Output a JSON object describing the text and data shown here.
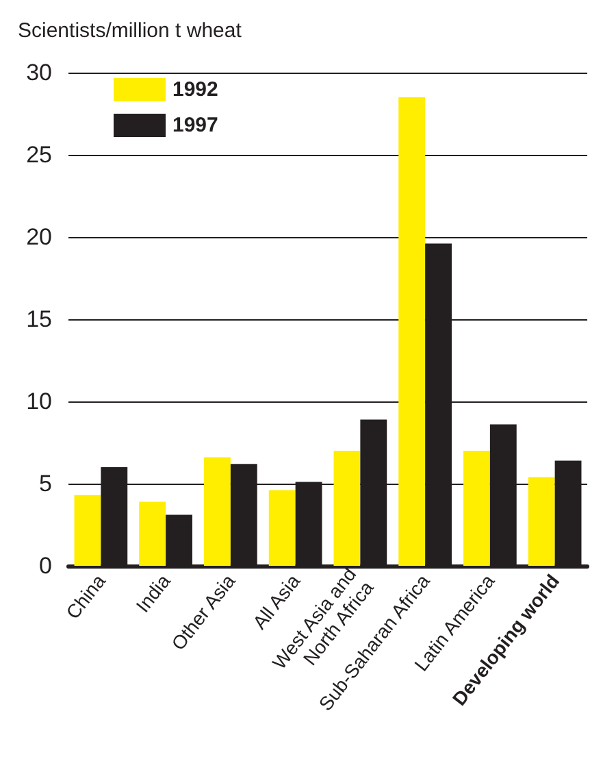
{
  "chart_data": {
    "type": "bar",
    "ylabel": "Scientists/million t wheat",
    "categories": [
      "China",
      "India",
      "Other Asia",
      "All Asia",
      "West Asia and\nNorth Africa",
      "Sub-Saharan Africa",
      "Latin America",
      "Developing world"
    ],
    "series": [
      {
        "name": "1992",
        "color": "#ffee00",
        "values": [
          4.3,
          3.9,
          6.6,
          4.6,
          7.0,
          28.5,
          7.0,
          5.4
        ]
      },
      {
        "name": "1997",
        "color": "#231f20",
        "values": [
          6.0,
          3.1,
          6.2,
          5.1,
          8.9,
          19.6,
          8.6,
          6.4
        ]
      }
    ],
    "ylim": [
      0,
      30
    ],
    "yticks": [
      0,
      5,
      10,
      15,
      20,
      25,
      30
    ],
    "grid": "y",
    "legend": "top left"
  }
}
